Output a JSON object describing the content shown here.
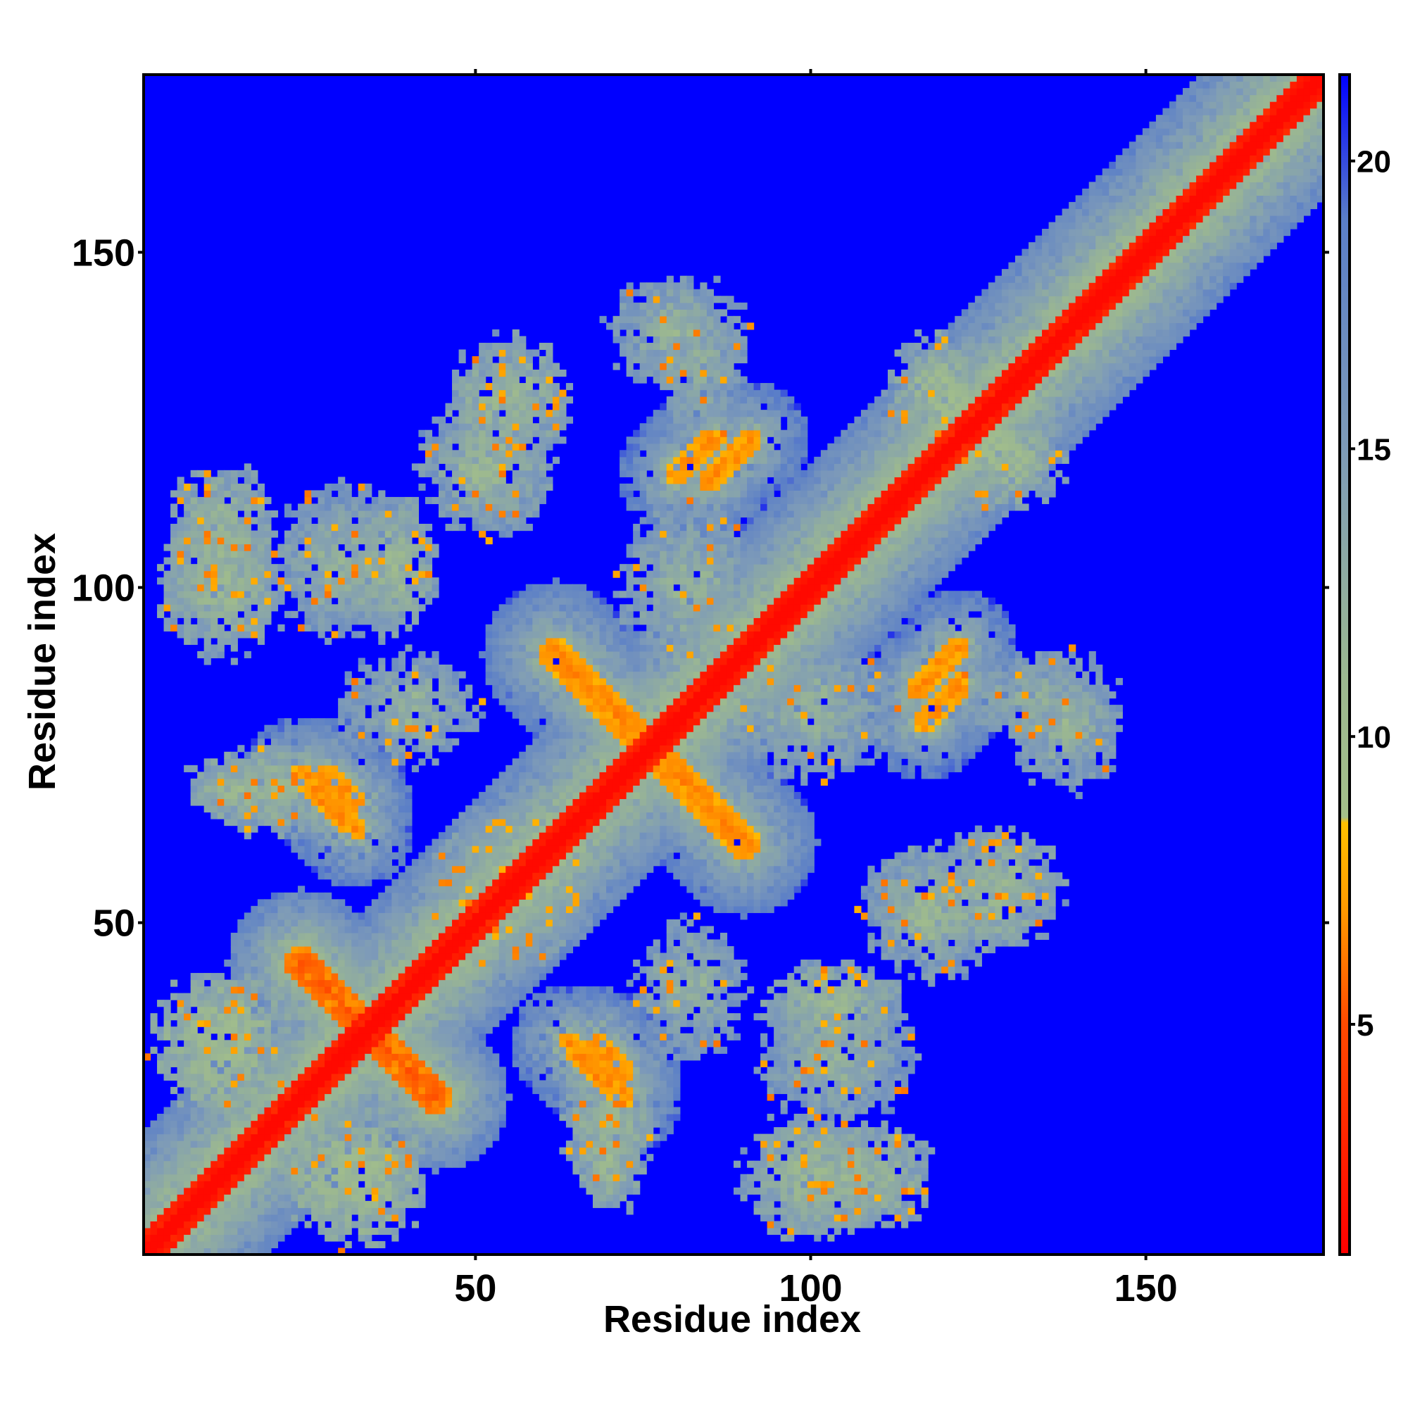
{
  "chart_data": {
    "type": "heatmap",
    "title": "",
    "xlabel": "Residue index",
    "ylabel": "Residue index",
    "xlim": [
      1,
      176
    ],
    "ylim": [
      1,
      176
    ],
    "x_ticks": [
      50,
      100,
      150
    ],
    "y_ticks": [
      50,
      100,
      150
    ],
    "grid": false,
    "symmetric": true,
    "colorbar": {
      "range": [
        1,
        21.5
      ],
      "ticks": [
        5,
        10,
        15,
        20
      ],
      "stops": [
        {
          "value": 1,
          "color": "#ff0000"
        },
        {
          "value": 5,
          "color": "#ff4a00"
        },
        {
          "value": 7,
          "color": "#ff9a00"
        },
        {
          "value": 8.5,
          "color": "#ffc000"
        },
        {
          "value": 8.6,
          "color": "#a4bf8a"
        },
        {
          "value": 11,
          "color": "#9cb890"
        },
        {
          "value": 15,
          "color": "#7e9bb8"
        },
        {
          "value": 19,
          "color": "#5a7ec8"
        },
        {
          "value": 21.5,
          "color": "#0000ff"
        }
      ],
      "background_color": "#0000ff"
    },
    "background_value": 21.5,
    "diagonal_band": {
      "center_value": 1,
      "half_width": 5
    },
    "features": [
      {
        "type": "diagonal_segment",
        "from": [
          1,
          1
        ],
        "to": [
          176,
          176
        ],
        "core_value": 1.5,
        "halo_value": 12,
        "width": 6
      },
      {
        "type": "antidiagonal_segment",
        "from": [
          24,
          44
        ],
        "to": [
          44,
          24
        ],
        "core_value": 5,
        "halo_value": 12,
        "width": 5
      },
      {
        "type": "antidiagonal_segment",
        "from": [
          28,
          72
        ],
        "to": [
          32,
          68
        ],
        "core_value": 6,
        "halo_value": 13,
        "width": 4
      },
      {
        "type": "antidiagonal_segment",
        "from": [
          62,
          90
        ],
        "to": [
          90,
          62
        ],
        "core_value": 6,
        "halo_value": 13,
        "width": 5
      },
      {
        "type": "antidiagonal_segment",
        "from": [
          85,
          122
        ],
        "to": [
          80,
          117
        ],
        "core_value": 6,
        "halo_value": 13,
        "width": 4
      },
      {
        "type": "antidiagonal_segment",
        "from": [
          116,
          85
        ],
        "to": [
          122,
          91
        ],
        "core_value": 6,
        "halo_value": 13,
        "width": 4
      },
      {
        "type": "antidiagonal_segment",
        "from": [
          64,
          32
        ],
        "to": [
          72,
          24
        ],
        "core_value": 6,
        "halo_value": 13,
        "width": 4
      },
      {
        "type": "blob",
        "center": [
          12,
          100
        ],
        "radius": [
          9,
          10
        ],
        "core_value": 11,
        "halo_value": 15
      },
      {
        "type": "blob",
        "center": [
          30,
          104
        ],
        "radius": [
          10,
          11
        ],
        "core_value": 12,
        "halo_value": 16
      },
      {
        "type": "blob",
        "center": [
          55,
          128
        ],
        "radius": [
          9,
          9
        ],
        "core_value": 11,
        "halo_value": 15
      },
      {
        "type": "blob",
        "center": [
          84,
          132
        ],
        "radius": [
          6,
          10
        ],
        "core_value": 12,
        "halo_value": 16
      },
      {
        "type": "blob",
        "center": [
          120,
          128
        ],
        "radius": [
          8,
          10
        ],
        "core_value": 10,
        "halo_value": 15
      },
      {
        "type": "blob",
        "center": [
          118,
          52
        ],
        "radius": [
          10,
          10
        ],
        "core_value": 11,
        "halo_value": 16
      },
      {
        "type": "blob",
        "center": [
          103,
          38
        ],
        "radius": [
          10,
          6
        ],
        "core_value": 11,
        "halo_value": 15
      },
      {
        "type": "blob",
        "center": [
          108,
          12
        ],
        "radius": [
          10,
          8
        ],
        "core_value": 11,
        "halo_value": 15
      },
      {
        "type": "blob",
        "center": [
          32,
          12
        ],
        "radius": [
          10,
          10
        ],
        "core_value": 10,
        "halo_value": 14
      },
      {
        "type": "blob",
        "center": [
          70,
          20
        ],
        "radius": [
          7,
          8
        ],
        "core_value": 11,
        "halo_value": 15
      },
      {
        "type": "blob",
        "center": [
          15,
          70
        ],
        "radius": [
          8,
          5
        ],
        "core_value": 11,
        "halo_value": 15
      },
      {
        "type": "blob",
        "center": [
          55,
          55
        ],
        "radius": [
          12,
          12
        ],
        "core_value": 12,
        "halo_value": 16
      },
      {
        "type": "blob",
        "center": [
          100,
          82
        ],
        "radius": [
          12,
          10
        ],
        "core_value": 12,
        "halo_value": 16
      },
      {
        "type": "blob",
        "center": [
          40,
          82
        ],
        "radius": [
          10,
          8
        ],
        "core_value": 12,
        "halo_value": 16
      },
      {
        "type": "blob",
        "center": [
          138,
          80
        ],
        "radius": [
          8,
          10
        ],
        "core_value": 12,
        "halo_value": 16
      }
    ]
  }
}
